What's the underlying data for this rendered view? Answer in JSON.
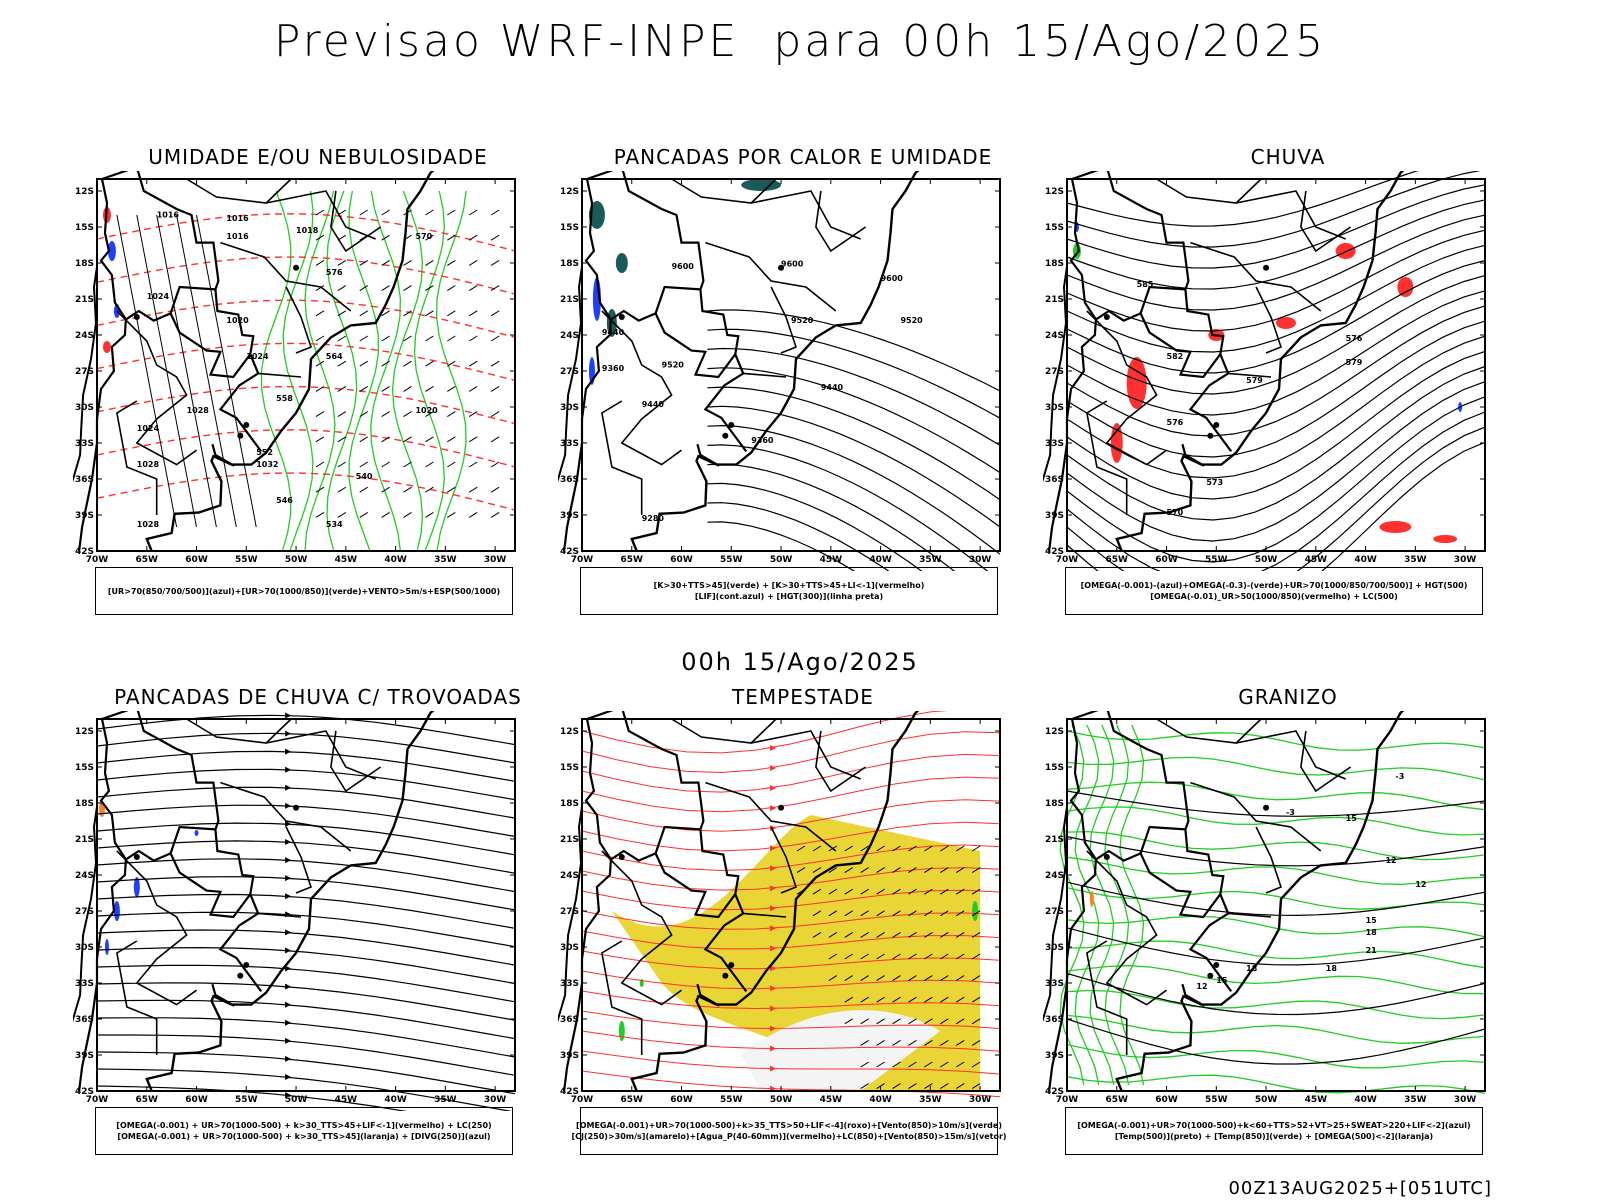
{
  "page": {
    "title": "Previsao WRF-INPE  para 00h 15/Ago/2025",
    "mid_label": "00h 15/Ago/2025",
    "footer_stamp": "00Z13AUG2025+[051UTC]"
  },
  "axes": {
    "lat_ticks": [
      "12S",
      "15S",
      "18S",
      "21S",
      "24S",
      "27S",
      "30S",
      "33S",
      "36S",
      "39S",
      "42S"
    ],
    "lon_ticks": [
      "70W",
      "65W",
      "60W",
      "55W",
      "50W",
      "45W",
      "40W",
      "35W",
      "30W"
    ]
  },
  "colors": {
    "blue": "#2040ff",
    "green": "#22cc22",
    "red": "#ff3030",
    "yellow": "#e8d020",
    "dark_teal": "#1a5a5a",
    "orange": "#ff8020"
  },
  "panels": [
    {
      "id": "umidade",
      "title": "UMIDADE E/OU NEBULOSIDADE",
      "legend": [
        "[UR>70(850/700/500)](azul)+[UR>70(1000/850)](verde)+VENTO>5m/s+ESP(500/1000)"
      ],
      "contour_labels": [
        "1016",
        "1016",
        "1016",
        "1018",
        "1024",
        "1020",
        "1024",
        "1028",
        "1028",
        "1024",
        "1032",
        "1020",
        "1028",
        "570",
        "576",
        "564",
        "558",
        "552",
        "546",
        "540",
        "534"
      ]
    },
    {
      "id": "pancadas-calor",
      "title": "PANCADAS POR CALOR E UMIDADE",
      "legend": [
        "[K>30+TTS>45](verde) + [K>30+TTS>45+LI<-1](vermelho)",
        "[LIF](cont.azul) + [HGT(300)](linha preta)"
      ],
      "contour_labels": [
        "9600",
        "9600",
        "9600",
        "9520",
        "9520",
        "9520",
        "9440",
        "9440",
        "9440",
        "9360",
        "9280",
        "9360"
      ]
    },
    {
      "id": "chuva",
      "title": "CHUVA",
      "legend": [
        "[OMEGA(-0.001)-(azul)+OMEGA(-0.3)-(verde)+UR>70(1000/850/700/500)] + HGT(500)",
        "[OMEGA(-0.01)_UR>50(1000/850)(vermelho) + LC(500)"
      ],
      "contour_labels": [
        "585",
        "582",
        "579",
        "576",
        "579",
        "576",
        "573",
        "570"
      ]
    },
    {
      "id": "pancadas-trovoadas",
      "title": "PANCADAS DE CHUVA C/ TROVOADAS",
      "legend": [
        "[OMEGA(-0.001) + UR>70(1000-500) + k>30_TTS>45+LIF<-1](vermelho) + LC(250)",
        "[OMEGA(-0.001) + UR>70(1000-500) + k>30_TTS>45](laranja) + [DIVG(250)](azul)"
      ],
      "contour_labels": []
    },
    {
      "id": "tempestade",
      "title": "TEMPESTADE",
      "legend": [
        "[OMEGA(-0.001)+UR>70(1000-500)+k>35_TTS>50+LIF<-4](roxo)+[Vento(850)>10m/s](verde)",
        "[CJ(250)>30m/s](amarelo)+[Agua_P(40-60mm)](vermelho)+LC(850)+[Vento(850)>15m/s](vetor)"
      ],
      "contour_labels": []
    },
    {
      "id": "granizo",
      "title": "GRANIZO",
      "legend": [
        "[OMEGA(-0.001)+UR>70(1000-500)+k<60+TTS>52+VT>25+SWEAT>220+LIF<-2](azul)",
        "[Temp(500)](preto) + [Temp(850)](verde) + [OMEGA(500)<-2](laranja)"
      ],
      "contour_labels": [
        "-3",
        "-3",
        "15",
        "12",
        "12",
        "15",
        "18",
        "21",
        "18",
        "15",
        "12",
        "18"
      ]
    }
  ]
}
